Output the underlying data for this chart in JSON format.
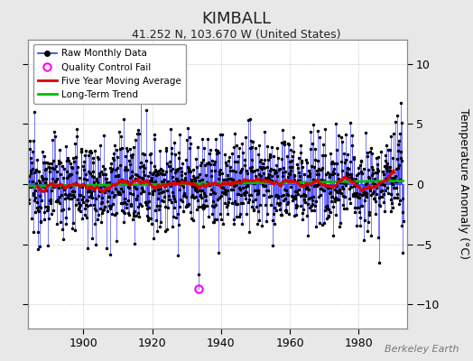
{
  "title": "KIMBALL",
  "subtitle": "41.252 N, 103.670 W (United States)",
  "ylabel": "Temperature Anomaly (°C)",
  "credit": "Berkeley Earth",
  "ylim": [
    -12,
    12
  ],
  "yticks": [
    -10,
    -5,
    0,
    5,
    10
  ],
  "xticks": [
    1900,
    1920,
    1940,
    1960,
    1980
  ],
  "xlim": [
    1884,
    1994
  ],
  "background_color": "#e8e8e8",
  "plot_bg_color": "#ffffff",
  "raw_line_color": "#3333ff",
  "raw_marker_color": "#000000",
  "moving_avg_color": "#dd0000",
  "trend_color": "#00bb00",
  "qc_fail_color": "#ff00ff",
  "seed": 12345,
  "data_start": 1884,
  "data_end": 1993,
  "noise_std": 2.0,
  "qc_year": 1933.5,
  "qc_val": -8.7
}
